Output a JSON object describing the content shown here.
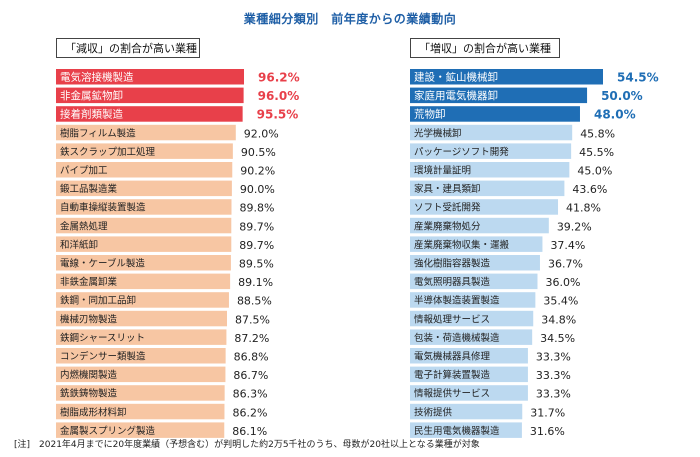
{
  "title": "業種細分類別　前年度からの業績動向",
  "note": "[注]　2021年4月までに20年度業績（予想含む）が判明した約2万5千社のうち、母数が20社以上となる業種が対象",
  "colors": {
    "left_highlight": "#e8404a",
    "left_normal": "#f7c6a3",
    "right_highlight": "#1f6eb5",
    "right_normal": "#bcd9f0",
    "highlight_text_left": "#e8404a",
    "highlight_text_right": "#1f6eb5",
    "title": "#1f5fa6"
  },
  "chart_data": [
    {
      "type": "bar",
      "orientation": "horizontal",
      "title": "「減収」の割合が高い業種",
      "unit": "%",
      "highlight_top": 3,
      "categories": [
        "電気溶接機製造",
        "非金属鉱物卸",
        "接着剤類製造",
        "樹脂フィルム製造",
        "鉄スクラップ加工処理",
        "パイプ加工",
        "鍛工品製造業",
        "自動車操縦装置製造",
        "金属熱処理",
        "和洋紙卸",
        "電線・ケーブル製造",
        "非鉄金属卸業",
        "鉄鋼・同加工品卸",
        "機械刃物製造",
        "鉄鋼シャースリット",
        "コンデンサー類製造",
        "内燃機関製造",
        "銑鉄鋳物製造",
        "樹脂成形材料卸",
        "金属製スプリング製造"
      ],
      "values": [
        96.2,
        96.0,
        95.5,
        92.0,
        90.5,
        90.2,
        90.0,
        89.8,
        89.7,
        89.7,
        89.5,
        89.1,
        88.5,
        87.5,
        87.2,
        86.8,
        86.7,
        86.3,
        86.2,
        86.1
      ],
      "value_labels": [
        "96.2%",
        "96.0%",
        "95.5%",
        "92.0%",
        "90.5%",
        "90.2%",
        "90.0%",
        "89.8%",
        "89.7%",
        "89.7%",
        "89.5%",
        "89.1%",
        "88.5%",
        "87.5%",
        "87.2%",
        "86.8%",
        "86.7%",
        "86.3%",
        "86.2%",
        "86.1%"
      ]
    },
    {
      "type": "bar",
      "orientation": "horizontal",
      "title": "「増収」の割合が高い業種",
      "unit": "%",
      "highlight_top": 3,
      "categories": [
        "建設・鉱山機械卸",
        "家庭用電気機器卸",
        "荒物卸",
        "光学機械卸",
        "パッケージソフト開発",
        "環境計量証明",
        "家具・建具類卸",
        "ソフト受託開発",
        "産業廃棄物処分",
        "産業廃棄物収集・運搬",
        "強化樹脂容器製造",
        "電気照明器具製造",
        "半導体製造装置製造",
        "情報処理サービス",
        "包装・荷造機械製造",
        "電気機械器具修理",
        "電子計算装置製造",
        "情報提供サービス",
        "技術提供",
        "民生用電気機器製造"
      ],
      "values": [
        54.5,
        50.0,
        48.0,
        45.8,
        45.5,
        45.0,
        43.6,
        41.8,
        39.2,
        37.4,
        36.7,
        36.0,
        35.4,
        34.8,
        34.5,
        33.3,
        33.3,
        33.3,
        31.7,
        31.6
      ],
      "value_labels": [
        "54.5%",
        "50.0%",
        "48.0%",
        "45.8%",
        "45.5%",
        "45.0%",
        "43.6%",
        "41.8%",
        "39.2%",
        "37.4%",
        "36.7%",
        "36.0%",
        "35.4%",
        "34.8%",
        "34.5%",
        "33.3%",
        "33.3%",
        "33.3%",
        "31.7%",
        "31.6%"
      ]
    }
  ]
}
